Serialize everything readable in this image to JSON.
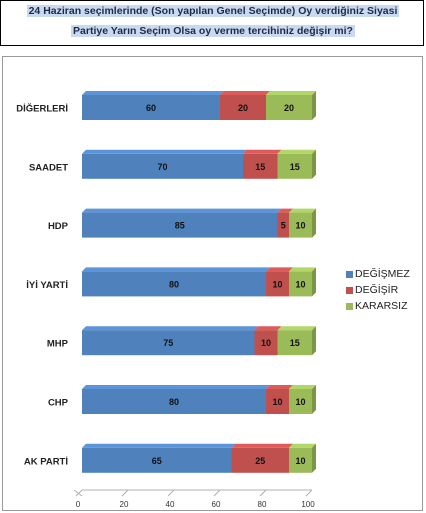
{
  "title": {
    "line1": "24 Haziran seçimlerinde (Son yapılan Genel Seçimde) Oy verdiğiniz Siyasi",
    "line2": "Partiye Yarın Seçim Olsa oy verme tercihiniz değişir mi?"
  },
  "chart_data": {
    "type": "bar",
    "orientation": "horizontal",
    "stacked": true,
    "categories": [
      "DİĞERLERİ",
      "SAADET",
      "HDP",
      "İYİ YARTİ",
      "MHP",
      "CHP",
      "AK PARTİ"
    ],
    "series": [
      {
        "name": "DEĞİŞMEZ",
        "color": "#4f81bd",
        "values": [
          60,
          70,
          85,
          80,
          75,
          80,
          65
        ]
      },
      {
        "name": "DEĞİŞİR",
        "color": "#c0504d",
        "values": [
          20,
          15,
          5,
          10,
          10,
          10,
          25
        ]
      },
      {
        "name": "KARARSIZ",
        "color": "#9bbb59",
        "values": [
          20,
          15,
          10,
          10,
          15,
          10,
          10
        ]
      }
    ],
    "xlim": [
      0,
      100
    ],
    "xticks": [
      0,
      20,
      40,
      60,
      80,
      100
    ],
    "legend_position": "right"
  }
}
